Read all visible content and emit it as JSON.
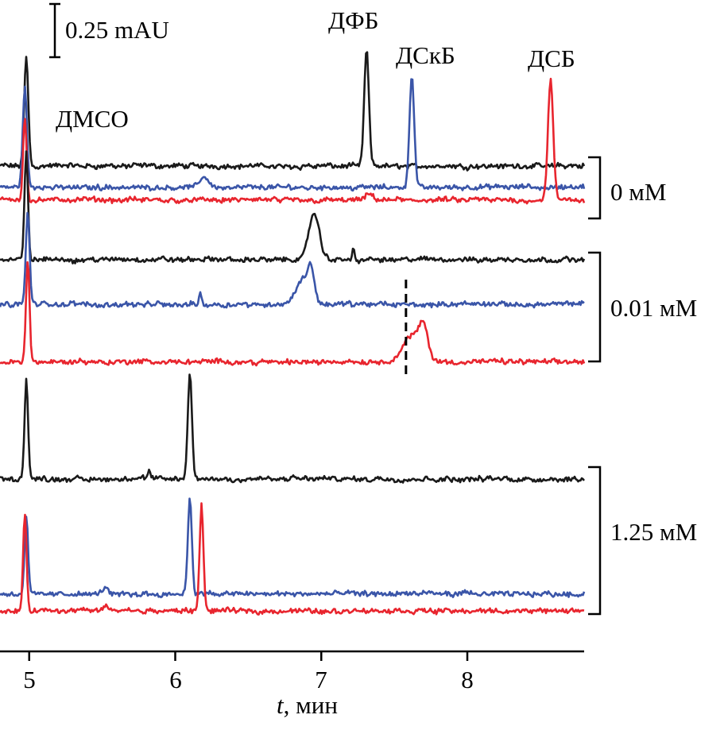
{
  "chart_data": {
    "type": "line",
    "title": "",
    "xlabel_italic": "t",
    "xlabel_rest": ", мин",
    "xlim": [
      4.8,
      8.8
    ],
    "xticks": [
      "5",
      "6",
      "7",
      "8"
    ],
    "xtick_values": [
      5,
      6,
      7,
      8
    ],
    "ylabel": "",
    "scale_bar": {
      "label": "0.25 mAU",
      "value": 0.25
    },
    "peak_labels": [
      {
        "text": "ДМСО",
        "color": "#000000"
      },
      {
        "text": "ДФБ",
        "color": "#000000"
      },
      {
        "text": "ДСкБ",
        "color": "#000000"
      },
      {
        "text": "ДСБ",
        "color": "#000000"
      }
    ],
    "groups": [
      {
        "label": "0 мМ",
        "series": [
          {
            "name": "ДФБ",
            "color": "#1a1a1a",
            "baseline": 2.28,
            "peaks": [
              [
                4.98,
                0.51,
                0.014
              ],
              [
                7.31,
                0.54,
                0.016
              ]
            ]
          },
          {
            "name": "ДСкБ",
            "color": "#3a55a8",
            "baseline": 2.18,
            "peaks": [
              [
                4.97,
                0.47,
                0.014
              ],
              [
                6.2,
                0.05,
                0.03
              ],
              [
                7.62,
                0.53,
                0.016
              ]
            ]
          },
          {
            "name": "ДСБ",
            "color": "#e8252e",
            "baseline": 2.12,
            "peaks": [
              [
                4.97,
                0.4,
                0.012
              ],
              [
                7.33,
                0.03,
                0.02
              ],
              [
                8.57,
                0.56,
                0.018
              ]
            ]
          }
        ]
      },
      {
        "label": "0.01 мМ",
        "series": [
          {
            "name": "ДФБ",
            "color": "#1a1a1a",
            "baseline": 1.84,
            "peaks": [
              [
                4.98,
                0.5,
                0.012
              ],
              [
                6.95,
                0.22,
                0.035
              ],
              [
                7.22,
                0.06,
                0.006
              ]
            ]
          },
          {
            "name": "ДСкБ",
            "color": "#3a55a8",
            "baseline": 1.63,
            "peaks": [
              [
                4.99,
                0.43,
                0.013
              ],
              [
                6.17,
                0.06,
                0.008
              ],
              [
                6.88,
                0.12,
                0.05
              ],
              [
                6.93,
                0.12,
                0.02
              ]
            ]
          },
          {
            "name": "ДСБ",
            "color": "#e8252e",
            "baseline": 1.36,
            "peaks": [
              [
                4.99,
                0.49,
                0.012
              ],
              [
                7.62,
                0.12,
                0.06
              ],
              [
                7.7,
                0.14,
                0.03
              ]
            ]
          }
        ]
      },
      {
        "label": "1.25 мМ",
        "series": [
          {
            "name": "ДФБ",
            "color": "#1a1a1a",
            "baseline": 0.81,
            "peaks": [
              [
                4.98,
                0.47,
                0.012
              ],
              [
                6.1,
                0.49,
                0.014
              ],
              [
                5.82,
                0.03,
                0.01
              ]
            ]
          },
          {
            "name": "ДСкБ",
            "color": "#3a55a8",
            "baseline": 0.27,
            "peaks": [
              [
                4.98,
                0.37,
                0.012
              ],
              [
                5.52,
                0.03,
                0.02
              ],
              [
                6.1,
                0.45,
                0.014
              ]
            ]
          },
          {
            "name": "ДСБ",
            "color": "#e8252e",
            "baseline": 0.19,
            "peaks": [
              [
                4.97,
                0.44,
                0.012
              ],
              [
                5.52,
                0.02,
                0.02
              ],
              [
                6.18,
                0.5,
                0.013
              ]
            ]
          }
        ]
      }
    ],
    "dashed_marker_time": 7.58
  }
}
